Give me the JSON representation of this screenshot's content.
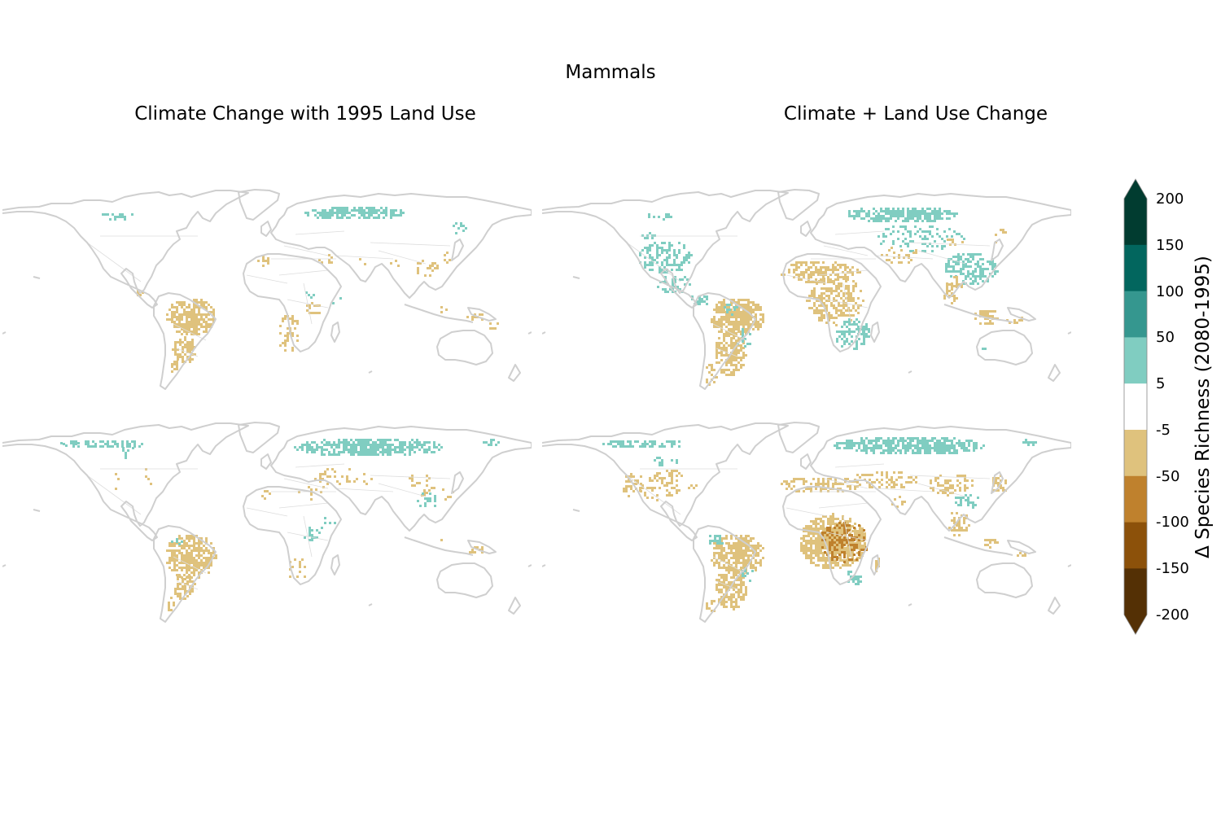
{
  "figure": {
    "title": "Mammals",
    "columns": [
      "Climate Change with 1995 Land Use",
      "Climate + Land Use Change"
    ]
  },
  "colorbar": {
    "label": "Δ Species Richness (2080-1995)",
    "ticks": [
      "200",
      "150",
      "100",
      "50",
      "5",
      "-5",
      "-50",
      "-100",
      "-150",
      "-200"
    ],
    "bins": [
      {
        "range": "150 to 200",
        "color": "#013c30"
      },
      {
        "range": "100 to 150",
        "color": "#02665e"
      },
      {
        "range": "50 to 100",
        "color": "#35978f"
      },
      {
        "range": "5 to 50",
        "color": "#80cdc1"
      },
      {
        "range": "-5 to 5",
        "color": "#ffffff"
      },
      {
        "range": "-50 to -5",
        "color": "#dfc27d"
      },
      {
        "range": "-100 to -50",
        "color": "#bf812d"
      },
      {
        "range": "-150 to -100",
        "color": "#8c510a"
      },
      {
        "range": "-200 to -150",
        "color": "#543005"
      }
    ],
    "extend": "both",
    "over_color": "#013c30",
    "under_color": "#543005"
  },
  "maps": [
    {
      "name": "top-left",
      "column": "Climate Change with 1995 Land Use",
      "row": 1
    },
    {
      "name": "top-right",
      "column": "Climate + Land Use Change",
      "row": 1
    },
    {
      "name": "bottom-left",
      "column": "Climate Change with 1995 Land Use",
      "row": 2
    },
    {
      "name": "bottom-right",
      "column": "Climate + Land Use Change",
      "row": 2
    }
  ]
}
